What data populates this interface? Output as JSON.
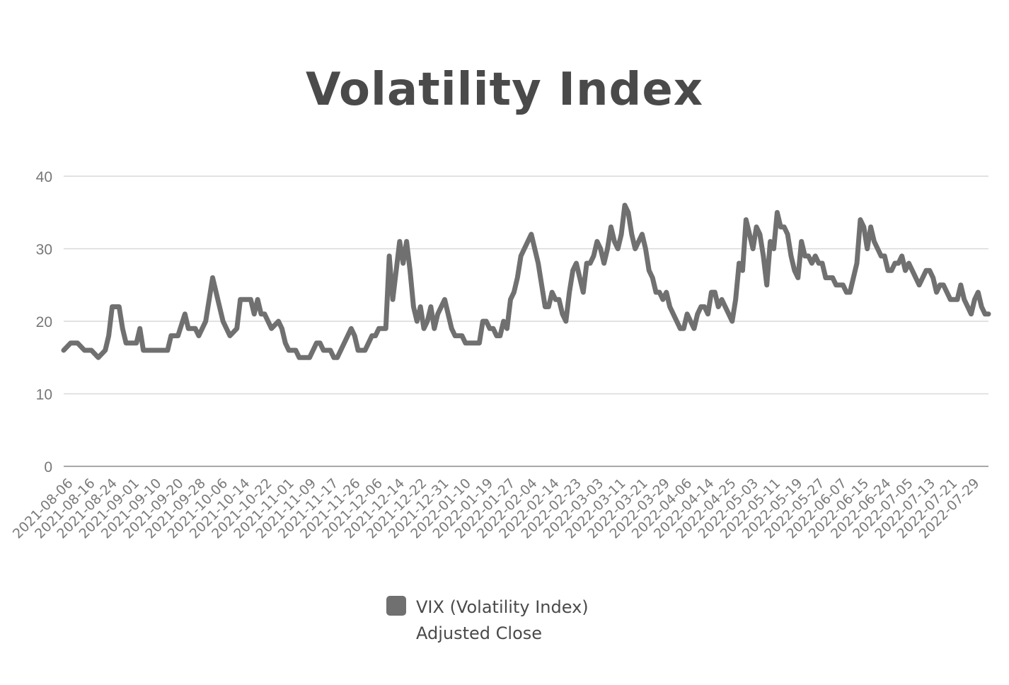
{
  "chart_data": {
    "type": "line",
    "title": "Volatility Index",
    "xlabel": "",
    "ylabel": "",
    "ylim": [
      0,
      40
    ],
    "yticks": [
      "0",
      "10",
      "20",
      "30",
      "40"
    ],
    "grid": true,
    "legend_position": "bottom",
    "x_tick_labels": [
      "2021-08-06",
      "2021-08-16",
      "2021-08-24",
      "2021-09-01",
      "2021-09-10",
      "2021-09-20",
      "2021-09-28",
      "2021-10-06",
      "2021-10-14",
      "2021-10-22",
      "2021-11-01",
      "2021-11-09",
      "2021-11-17",
      "2021-11-26",
      "2021-12-06",
      "2021-12-14",
      "2021-12-22",
      "2021-12-31",
      "2022-01-10",
      "2022-01-19",
      "2022-01-27",
      "2022-02-04",
      "2022-02-14",
      "2022-02-23",
      "2022-03-03",
      "2022-03-11",
      "2022-03-21",
      "2022-03-29",
      "2022-04-06",
      "2022-04-14",
      "2022-04-25",
      "2022-05-03",
      "2022-05-11",
      "2022-05-19",
      "2022-05-27",
      "2022-06-07",
      "2022-06-15",
      "2022-06-24",
      "2022-07-05",
      "2022-07-13",
      "2022-07-21",
      "2022-07-29"
    ],
    "series": [
      {
        "name": "VIX (Volatility Index) Adjusted Close",
        "color": "#707070",
        "points": [
          [
            0,
            16
          ],
          [
            2,
            17
          ],
          [
            4,
            17
          ],
          [
            6,
            16
          ],
          [
            8,
            16
          ],
          [
            10,
            15
          ],
          [
            12,
            16
          ],
          [
            13,
            18
          ],
          [
            14,
            22
          ],
          [
            16,
            22
          ],
          [
            17,
            19
          ],
          [
            18,
            17
          ],
          [
            20,
            17
          ],
          [
            21,
            17
          ],
          [
            22,
            19
          ],
          [
            23,
            16
          ],
          [
            25,
            16
          ],
          [
            28,
            16
          ],
          [
            30,
            16
          ],
          [
            31,
            18
          ],
          [
            33,
            18
          ],
          [
            35,
            21
          ],
          [
            36,
            19
          ],
          [
            38,
            19
          ],
          [
            39,
            18
          ],
          [
            41,
            20
          ],
          [
            43,
            26
          ],
          [
            44,
            24
          ],
          [
            45,
            22
          ],
          [
            46,
            20
          ],
          [
            47,
            19
          ],
          [
            48,
            18
          ],
          [
            50,
            19
          ],
          [
            51,
            23
          ],
          [
            52,
            23
          ],
          [
            54,
            23
          ],
          [
            55,
            21
          ],
          [
            56,
            23
          ],
          [
            57,
            21
          ],
          [
            58,
            21
          ],
          [
            59,
            20
          ],
          [
            60,
            19
          ],
          [
            62,
            20
          ],
          [
            63,
            19
          ],
          [
            64,
            17
          ],
          [
            65,
            16
          ],
          [
            67,
            16
          ],
          [
            68,
            15
          ],
          [
            70,
            15
          ],
          [
            71,
            15
          ],
          [
            72,
            16
          ],
          [
            73,
            17
          ],
          [
            74,
            17
          ],
          [
            75,
            16
          ],
          [
            77,
            16
          ],
          [
            78,
            15
          ],
          [
            79,
            15
          ],
          [
            80,
            16
          ],
          [
            81,
            17
          ],
          [
            82,
            18
          ],
          [
            83,
            19
          ],
          [
            84,
            18
          ],
          [
            85,
            16
          ],
          [
            87,
            16
          ],
          [
            88,
            17
          ],
          [
            89,
            18
          ],
          [
            90,
            18
          ],
          [
            91,
            19
          ],
          [
            93,
            19
          ],
          [
            94,
            29
          ],
          [
            95,
            23
          ],
          [
            96,
            27
          ],
          [
            97,
            31
          ],
          [
            98,
            28
          ],
          [
            99,
            31
          ],
          [
            100,
            27
          ],
          [
            101,
            22
          ],
          [
            102,
            20
          ],
          [
            103,
            22
          ],
          [
            104,
            19
          ],
          [
            105,
            20
          ],
          [
            106,
            22
          ],
          [
            107,
            19
          ],
          [
            108,
            21
          ],
          [
            110,
            23
          ],
          [
            111,
            21
          ],
          [
            112,
            19
          ],
          [
            113,
            18
          ],
          [
            115,
            18
          ],
          [
            116,
            17
          ],
          [
            120,
            17
          ],
          [
            121,
            20
          ],
          [
            122,
            20
          ],
          [
            123,
            19
          ],
          [
            124,
            19
          ],
          [
            125,
            18
          ],
          [
            126,
            18
          ],
          [
            127,
            20
          ],
          [
            128,
            19
          ],
          [
            129,
            23
          ],
          [
            130,
            24
          ],
          [
            131,
            26
          ],
          [
            132,
            29
          ],
          [
            133,
            30
          ],
          [
            134,
            31
          ],
          [
            135,
            32
          ],
          [
            136,
            30
          ],
          [
            137,
            28
          ],
          [
            138,
            25
          ],
          [
            139,
            22
          ],
          [
            140,
            22
          ],
          [
            141,
            24
          ],
          [
            142,
            23
          ],
          [
            143,
            23
          ],
          [
            144,
            21
          ],
          [
            145,
            20
          ],
          [
            146,
            24
          ],
          [
            147,
            27
          ],
          [
            148,
            28
          ],
          [
            149,
            26
          ],
          [
            150,
            24
          ],
          [
            151,
            28
          ],
          [
            152,
            28
          ],
          [
            153,
            29
          ],
          [
            154,
            31
          ],
          [
            155,
            30
          ],
          [
            156,
            28
          ],
          [
            157,
            30
          ],
          [
            158,
            33
          ],
          [
            159,
            31
          ],
          [
            160,
            30
          ],
          [
            161,
            32
          ],
          [
            162,
            36
          ],
          [
            163,
            35
          ],
          [
            164,
            32
          ],
          [
            165,
            30
          ],
          [
            166,
            31
          ],
          [
            167,
            32
          ],
          [
            168,
            30
          ],
          [
            169,
            27
          ],
          [
            170,
            26
          ],
          [
            171,
            24
          ],
          [
            172,
            24
          ],
          [
            173,
            23
          ],
          [
            174,
            24
          ],
          [
            175,
            22
          ],
          [
            176,
            21
          ],
          [
            177,
            20
          ],
          [
            178,
            19
          ],
          [
            179,
            19
          ],
          [
            180,
            21
          ],
          [
            181,
            20
          ],
          [
            182,
            19
          ],
          [
            183,
            21
          ],
          [
            184,
            22
          ],
          [
            185,
            22
          ],
          [
            186,
            21
          ],
          [
            187,
            24
          ],
          [
            188,
            24
          ],
          [
            189,
            22
          ],
          [
            190,
            23
          ],
          [
            191,
            22
          ],
          [
            192,
            21
          ],
          [
            193,
            20
          ],
          [
            194,
            23
          ],
          [
            195,
            28
          ],
          [
            196,
            27
          ],
          [
            197,
            34
          ],
          [
            198,
            32
          ],
          [
            199,
            30
          ],
          [
            200,
            33
          ],
          [
            201,
            32
          ],
          [
            202,
            29
          ],
          [
            203,
            25
          ],
          [
            204,
            31
          ],
          [
            205,
            30
          ],
          [
            206,
            35
          ],
          [
            207,
            33
          ],
          [
            208,
            33
          ],
          [
            209,
            32
          ],
          [
            210,
            29
          ],
          [
            211,
            27
          ],
          [
            212,
            26
          ],
          [
            213,
            31
          ],
          [
            214,
            29
          ],
          [
            215,
            29
          ],
          [
            216,
            28
          ],
          [
            217,
            29
          ],
          [
            218,
            28
          ],
          [
            219,
            28
          ],
          [
            220,
            26
          ],
          [
            221,
            26
          ],
          [
            222,
            26
          ],
          [
            223,
            25
          ],
          [
            225,
            25
          ],
          [
            226,
            24
          ],
          [
            227,
            24
          ],
          [
            228,
            26
          ],
          [
            229,
            28
          ],
          [
            230,
            34
          ],
          [
            231,
            33
          ],
          [
            232,
            30
          ],
          [
            233,
            33
          ],
          [
            234,
            31
          ],
          [
            235,
            30
          ],
          [
            236,
            29
          ],
          [
            237,
            29
          ],
          [
            238,
            27
          ],
          [
            239,
            27
          ],
          [
            240,
            28
          ],
          [
            241,
            28
          ],
          [
            242,
            29
          ],
          [
            243,
            27
          ],
          [
            244,
            28
          ],
          [
            245,
            27
          ],
          [
            246,
            26
          ],
          [
            247,
            25
          ],
          [
            248,
            26
          ],
          [
            249,
            27
          ],
          [
            250,
            27
          ],
          [
            251,
            26
          ],
          [
            252,
            24
          ],
          [
            253,
            25
          ],
          [
            254,
            25
          ],
          [
            255,
            24
          ],
          [
            256,
            23
          ],
          [
            257,
            23
          ],
          [
            258,
            23
          ],
          [
            259,
            25
          ],
          [
            260,
            23
          ],
          [
            261,
            22
          ],
          [
            262,
            21
          ],
          [
            263,
            23
          ],
          [
            264,
            24
          ],
          [
            265,
            22
          ],
          [
            266,
            21
          ],
          [
            267,
            21
          ]
        ]
      }
    ]
  },
  "legend": {
    "label_line1": "VIX (Volatility Index)",
    "label_line2": "Adjusted Close",
    "swatch_color": "#707070"
  }
}
